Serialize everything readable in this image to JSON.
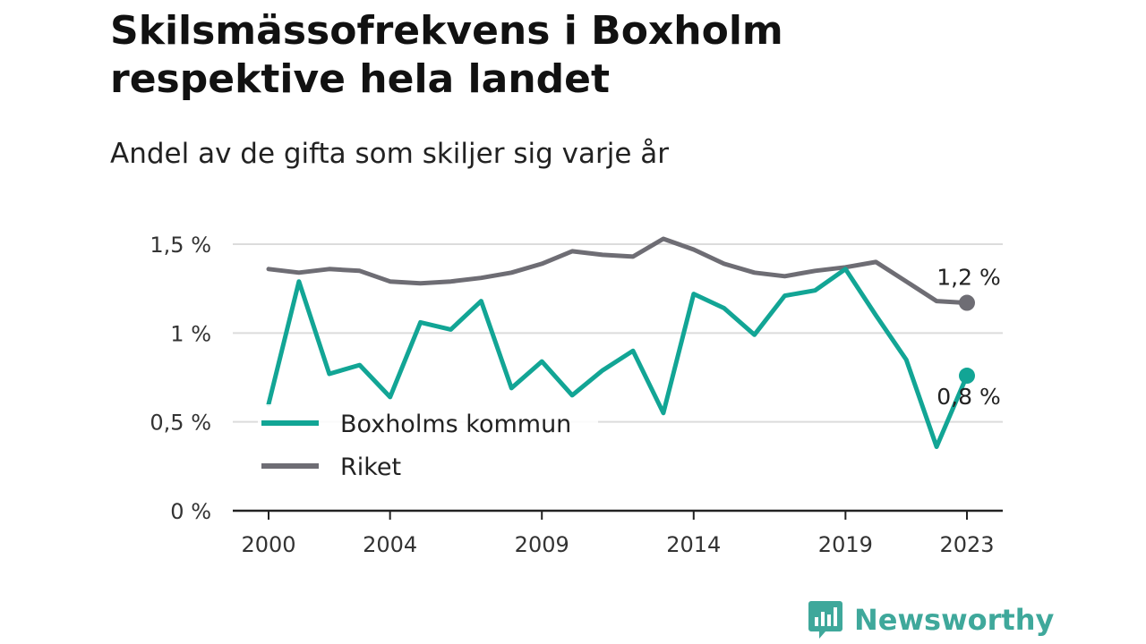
{
  "title_line1": "Skilsmässofrekvens i Boxholm",
  "title_line2": "respektive hela landet",
  "subtitle": "Andel av de gifta som skiljer sig varje år",
  "brand": {
    "name": "Newsworthy",
    "icon": "newsworthy-logo-icon",
    "color": "#3fa89b"
  },
  "chart_data": {
    "type": "line",
    "x": [
      2000,
      2001,
      2002,
      2003,
      2004,
      2005,
      2006,
      2007,
      2008,
      2009,
      2010,
      2011,
      2012,
      2013,
      2014,
      2015,
      2016,
      2017,
      2018,
      2019,
      2020,
      2021,
      2022,
      2023
    ],
    "x_ticks": [
      2000,
      2004,
      2009,
      2014,
      2019,
      2023
    ],
    "x_tick_labels": [
      "2000",
      "2004",
      "2009",
      "2014",
      "2019",
      "2023"
    ],
    "ylim": [
      0,
      1.5
    ],
    "y_ticks": [
      0,
      0.5,
      1,
      1.5
    ],
    "y_tick_labels": [
      "0 %",
      "0,5 %",
      "1 %",
      "1,5 %"
    ],
    "grid": true,
    "legend_position": "bottom-left inside",
    "series": [
      {
        "name": "Boxholms kommun",
        "color": "#12a595",
        "values": [
          0.6,
          1.29,
          0.77,
          0.82,
          0.64,
          1.06,
          1.02,
          1.18,
          0.69,
          0.84,
          0.65,
          0.79,
          0.9,
          0.55,
          1.22,
          1.14,
          0.99,
          1.21,
          1.24,
          1.36,
          1.1,
          0.85,
          0.36,
          0.76
        ],
        "end_label": "0,8 %"
      },
      {
        "name": "Riket",
        "color": "#6e6d74",
        "values": [
          1.36,
          1.34,
          1.36,
          1.35,
          1.29,
          1.28,
          1.29,
          1.31,
          1.34,
          1.39,
          1.46,
          1.44,
          1.43,
          1.53,
          1.47,
          1.39,
          1.34,
          1.32,
          1.35,
          1.37,
          1.4,
          1.29,
          1.18,
          1.17
        ],
        "end_label": "1,2 %"
      }
    ]
  }
}
